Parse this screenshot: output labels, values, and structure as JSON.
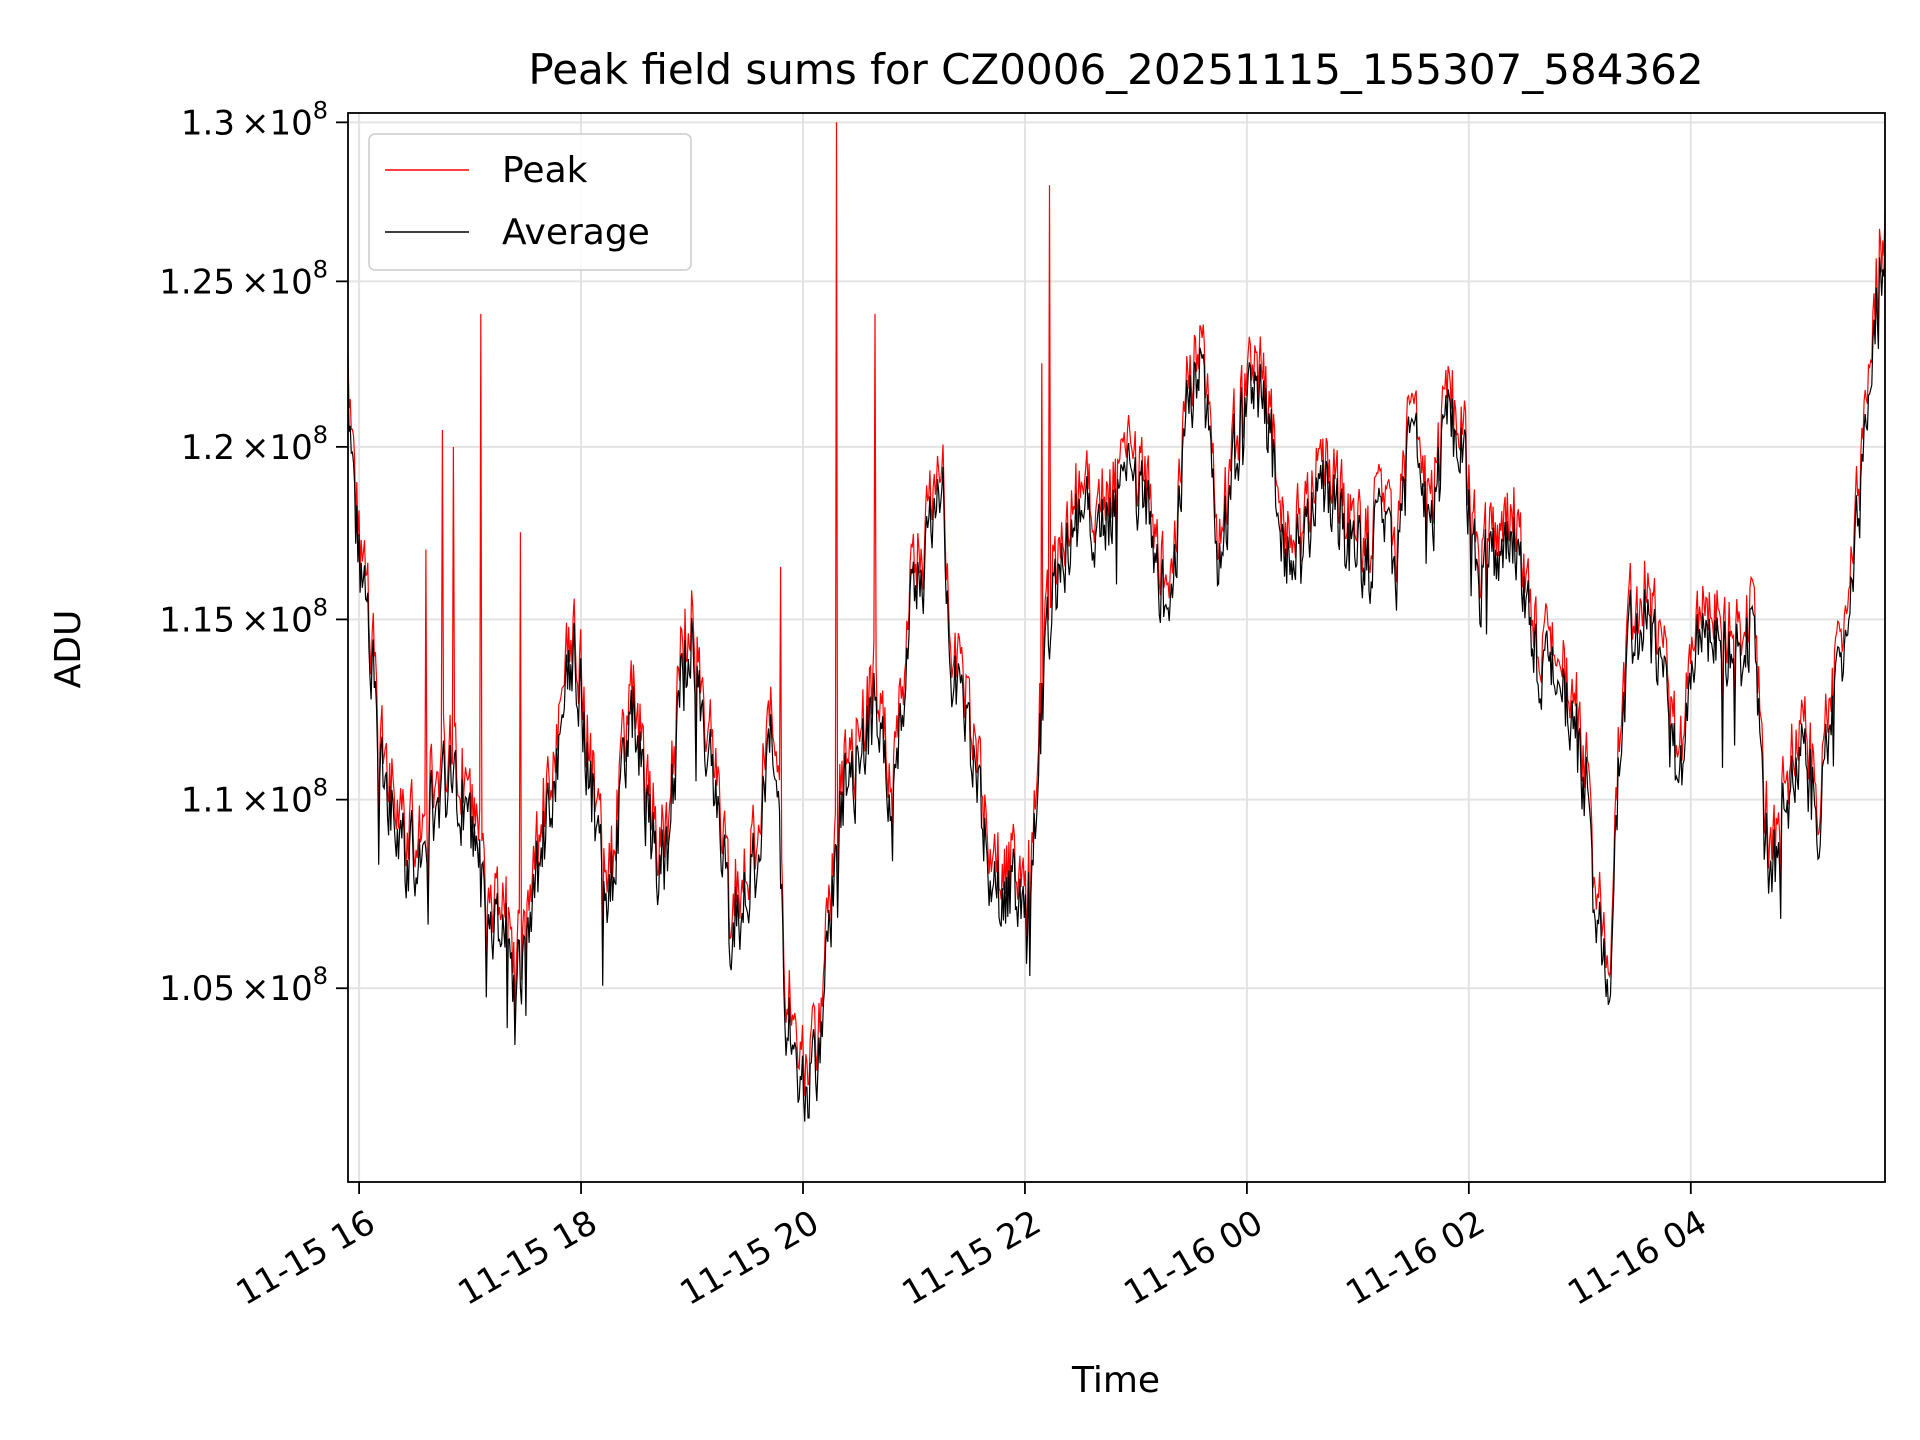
{
  "chart_data": {
    "type": "line",
    "title": "Peak field sums for CZ0006_20251115_155307_584362",
    "xlabel": "Time",
    "ylabel": "ADU",
    "x_range_hours": [
      15.9,
      29.75
    ],
    "ylim": [
      100100000,
      130300000
    ],
    "y_scale": "log",
    "grid": true,
    "legend_position": "top-left",
    "x_ticks": [
      {
        "hour": 16,
        "label": "11-15 16"
      },
      {
        "hour": 18,
        "label": "11-15 18"
      },
      {
        "hour": 20,
        "label": "11-15 20"
      },
      {
        "hour": 22,
        "label": "11-15 22"
      },
      {
        "hour": 24,
        "label": "11-16 00"
      },
      {
        "hour": 26,
        "label": "11-16 02"
      },
      {
        "hour": 28,
        "label": "11-16 04"
      }
    ],
    "y_ticks": [
      {
        "value": 105000000,
        "mantissa": "1.05",
        "times": "×10",
        "exp": "8"
      },
      {
        "value": 110000000,
        "mantissa": "1.1",
        "times": "×10",
        "exp": "8"
      },
      {
        "value": 115000000,
        "mantissa": "1.15",
        "times": "×10",
        "exp": "8"
      },
      {
        "value": 120000000,
        "mantissa": "1.2",
        "times": "×10",
        "exp": "8"
      },
      {
        "value": 125000000,
        "mantissa": "1.25",
        "times": "×10",
        "exp": "8"
      },
      {
        "value": 130000000,
        "mantissa": "1.3",
        "times": "×10",
        "exp": "8"
      }
    ],
    "series": [
      {
        "name": "Peak",
        "color": "#ff0000",
        "role": "peak",
        "offset_adu": 600000
      },
      {
        "name": "Average",
        "color": "#000000",
        "role": "average"
      }
    ],
    "average_anchor_points": [
      [
        15.9,
        121.5
      ],
      [
        16.0,
        116.5
      ],
      [
        16.1,
        114.0
      ],
      [
        16.2,
        111.0
      ],
      [
        16.3,
        109.5
      ],
      [
        16.45,
        108.0
      ],
      [
        16.6,
        109.5
      ],
      [
        16.8,
        110.5
      ],
      [
        17.0,
        109.5
      ],
      [
        17.1,
        107.5
      ],
      [
        17.3,
        106.5
      ],
      [
        17.45,
        105.0
      ],
      [
        17.6,
        107.5
      ],
      [
        17.8,
        111.5
      ],
      [
        17.95,
        114.0
      ],
      [
        18.1,
        110.0
      ],
      [
        18.25,
        107.0
      ],
      [
        18.45,
        113.0
      ],
      [
        18.6,
        109.5
      ],
      [
        18.75,
        107.5
      ],
      [
        18.9,
        113.0
      ],
      [
        19.0,
        115.0
      ],
      [
        19.15,
        111.0
      ],
      [
        19.35,
        106.5
      ],
      [
        19.55,
        108.0
      ],
      [
        19.75,
        112.0
      ],
      [
        19.85,
        104.0
      ],
      [
        20.0,
        102.5
      ],
      [
        20.15,
        103.5
      ],
      [
        20.35,
        110.0
      ],
      [
        20.5,
        111.0
      ],
      [
        20.65,
        112.5
      ],
      [
        20.8,
        109.0
      ],
      [
        20.95,
        115.0
      ],
      [
        21.1,
        116.5
      ],
      [
        21.25,
        119.0
      ],
      [
        21.35,
        113.5
      ],
      [
        21.5,
        111.5
      ],
      [
        21.65,
        108.5
      ],
      [
        21.8,
        107.5
      ],
      [
        22.05,
        108.0
      ],
      [
        22.2,
        114.5
      ],
      [
        22.35,
        117.0
      ],
      [
        22.5,
        118.0
      ],
      [
        22.7,
        117.5
      ],
      [
        22.9,
        119.0
      ],
      [
        23.1,
        118.0
      ],
      [
        23.3,
        114.5
      ],
      [
        23.45,
        121.0
      ],
      [
        23.6,
        122.5
      ],
      [
        23.75,
        116.5
      ],
      [
        23.9,
        120.0
      ],
      [
        24.05,
        122.0
      ],
      [
        24.2,
        120.5
      ],
      [
        24.35,
        116.5
      ],
      [
        24.5,
        117.0
      ],
      [
        24.65,
        119.0
      ],
      [
        24.8,
        118.0
      ],
      [
        24.95,
        117.0
      ],
      [
        25.1,
        116.5
      ],
      [
        25.25,
        118.0
      ],
      [
        25.35,
        116.0
      ],
      [
        25.5,
        121.5
      ],
      [
        25.65,
        117.0
      ],
      [
        25.8,
        121.0
      ],
      [
        25.95,
        119.5
      ],
      [
        26.1,
        116.0
      ],
      [
        26.3,
        117.5
      ],
      [
        26.45,
        117.0
      ],
      [
        26.6,
        114.0
      ],
      [
        26.75,
        113.5
      ],
      [
        26.9,
        112.5
      ],
      [
        27.05,
        110.5
      ],
      [
        27.15,
        107.5
      ],
      [
        27.25,
        104.5
      ],
      [
        27.35,
        110.5
      ],
      [
        27.45,
        114.5
      ],
      [
        27.6,
        115.0
      ],
      [
        27.75,
        113.0
      ],
      [
        27.9,
        110.0
      ],
      [
        28.05,
        114.0
      ],
      [
        28.2,
        114.5
      ],
      [
        28.4,
        113.5
      ],
      [
        28.55,
        115.0
      ],
      [
        28.7,
        108.0
      ],
      [
        28.85,
        109.5
      ],
      [
        29.0,
        111.0
      ],
      [
        29.15,
        109.5
      ],
      [
        29.3,
        113.0
      ],
      [
        29.45,
        116.0
      ],
      [
        29.55,
        119.0
      ],
      [
        29.65,
        124.0
      ],
      [
        29.75,
        125.5
      ]
    ],
    "peak_spikes": [
      [
        16.6,
        117.0
      ],
      [
        16.75,
        120.5
      ],
      [
        16.85,
        120.0
      ],
      [
        17.1,
        124.0
      ],
      [
        17.45,
        117.5
      ],
      [
        19.8,
        116.5
      ],
      [
        20.3,
        130.0
      ],
      [
        20.65,
        124.0
      ],
      [
        22.15,
        122.5
      ],
      [
        22.22,
        128.0
      ]
    ]
  }
}
